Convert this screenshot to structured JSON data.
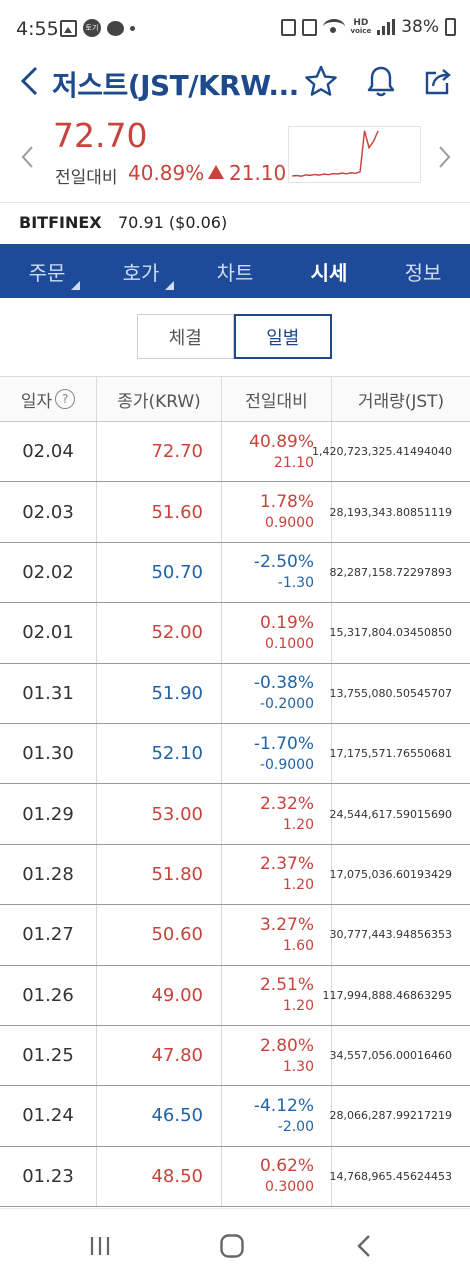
{
  "status_bar": {
    "time": "4:55",
    "badge_text": "토기",
    "hd_top": "HD",
    "hd_bottom": "voice",
    "battery": "38%"
  },
  "header": {
    "title": "저스트(JST/KRW..."
  },
  "summary": {
    "price": "72.70",
    "diff_label": "전일대비",
    "diff_pct": "40.89%",
    "diff_value": "21.10",
    "sparkline": [
      52.1,
      52.3,
      52.0,
      52.6,
      52.4,
      52.8,
      52.5,
      53.0,
      52.7,
      53.2,
      53.0,
      53.4,
      53.1,
      53.6,
      53.3,
      54.0,
      72.7,
      65.0,
      68.0,
      72.7
    ]
  },
  "exchange": {
    "name": "BITFINEX",
    "price": "70.91 ($0.06)"
  },
  "tabs": [
    "주문",
    "호가",
    "차트",
    "시세",
    "정보"
  ],
  "segment": {
    "left": "체결",
    "right": "일별"
  },
  "table": {
    "headers": {
      "date": "일자",
      "close": "종가(KRW)",
      "change": "전일대비",
      "volume": "거래량(JST)"
    },
    "rows": [
      {
        "date": "02.04",
        "close": "72.70",
        "pct": "40.89%",
        "diff": "21.10",
        "volume": "1,420,723,325.41494040",
        "dir": "up"
      },
      {
        "date": "02.03",
        "close": "51.60",
        "pct": "1.78%",
        "diff": "0.9000",
        "volume": "28,193,343.80851119",
        "dir": "up"
      },
      {
        "date": "02.02",
        "close": "50.70",
        "pct": "-2.50%",
        "diff": "-1.30",
        "volume": "82,287,158.72297893",
        "dir": "down"
      },
      {
        "date": "02.01",
        "close": "52.00",
        "pct": "0.19%",
        "diff": "0.1000",
        "volume": "15,317,804.03450850",
        "dir": "up"
      },
      {
        "date": "01.31",
        "close": "51.90",
        "pct": "-0.38%",
        "diff": "-0.2000",
        "volume": "13,755,080.50545707",
        "dir": "down"
      },
      {
        "date": "01.30",
        "close": "52.10",
        "pct": "-1.70%",
        "diff": "-0.9000",
        "volume": "17,175,571.76550681",
        "dir": "down"
      },
      {
        "date": "01.29",
        "close": "53.00",
        "pct": "2.32%",
        "diff": "1.20",
        "volume": "24,544,617.59015690",
        "dir": "up"
      },
      {
        "date": "01.28",
        "close": "51.80",
        "pct": "2.37%",
        "diff": "1.20",
        "volume": "17,075,036.60193429",
        "dir": "up"
      },
      {
        "date": "01.27",
        "close": "50.60",
        "pct": "3.27%",
        "diff": "1.60",
        "volume": "30,777,443.94856353",
        "dir": "up"
      },
      {
        "date": "01.26",
        "close": "49.00",
        "pct": "2.51%",
        "diff": "1.20",
        "volume": "117,994,888.46863295",
        "dir": "up"
      },
      {
        "date": "01.25",
        "close": "47.80",
        "pct": "2.80%",
        "diff": "1.30",
        "volume": "34,557,056.00016460",
        "dir": "up"
      },
      {
        "date": "01.24",
        "close": "46.50",
        "pct": "-4.12%",
        "diff": "-2.00",
        "volume": "28,066,287.99217219",
        "dir": "down"
      },
      {
        "date": "01.23",
        "close": "48.50",
        "pct": "0.62%",
        "diff": "0.3000",
        "volume": "14,768,965.45624453",
        "dir": "up"
      }
    ]
  },
  "colors": {
    "up": "#c8433b",
    "down": "#2063a8",
    "brand": "#1e4a8c",
    "tab_bg": "#1e4a9a"
  }
}
